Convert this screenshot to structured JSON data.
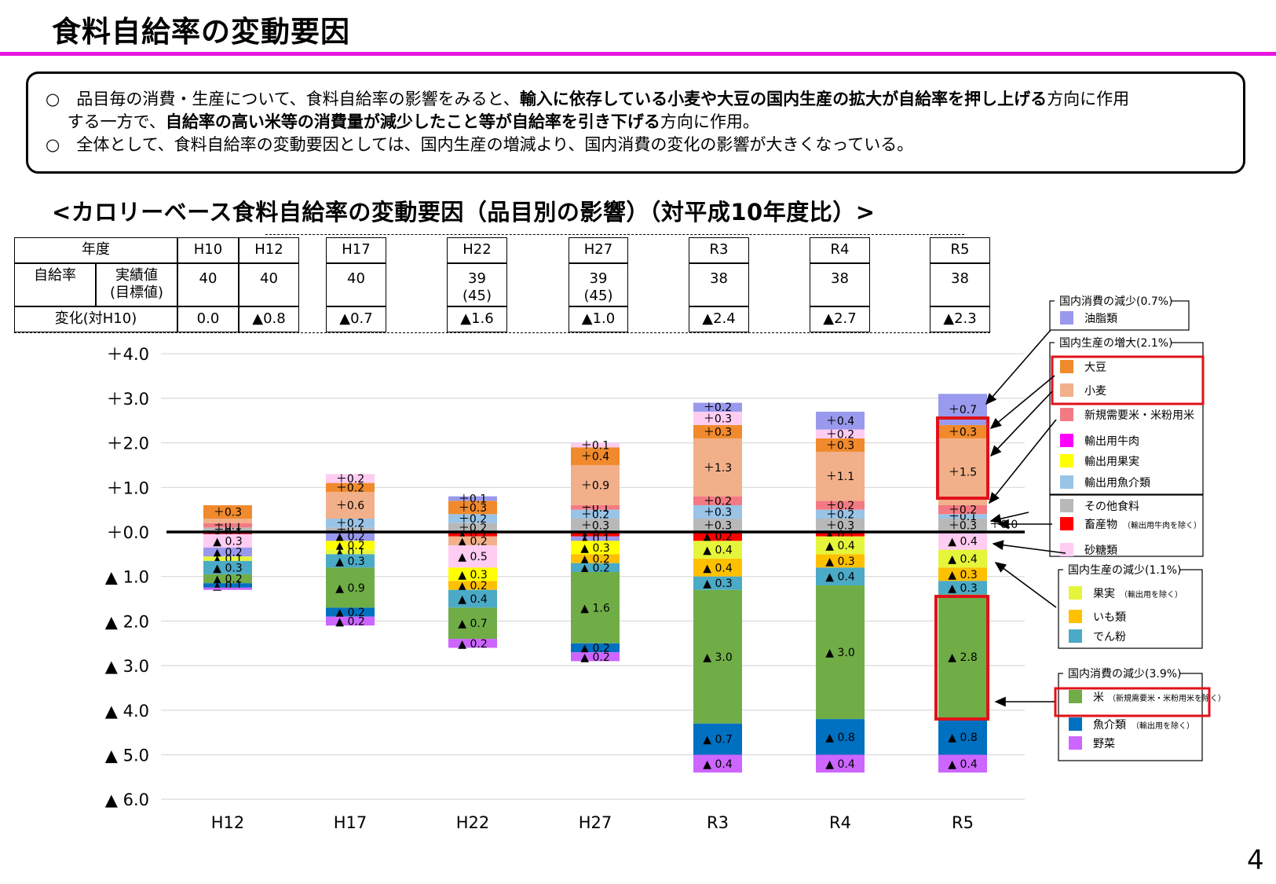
{
  "title": "食料自給率の変動要因",
  "summary": {
    "bullet1": [
      {
        "t": "○　品目毎の消費・生産について、食料自給率の影響をみると、",
        "b": false
      },
      {
        "t": "輸入に依存している小麦や大豆の国内生産の拡大が自給率を押し上げる",
        "b": true
      },
      {
        "t": "方向に作用",
        "b": false
      }
    ],
    "bullet1_cont": [
      {
        "t": "　 する一方で、",
        "b": false
      },
      {
        "t": "自給率の高い米等の消費量が減少したこと等が自給率を引き下げる",
        "b": true
      },
      {
        "t": "方向に作用。",
        "b": false
      }
    ],
    "bullet2": [
      {
        "t": "○　全体として、食料自給率の変動要因としては、国内生産の増減より、国内消費の変化の影響が大きくなっている。",
        "b": false
      }
    ]
  },
  "chart_heading": "<カロリーベース食料自給率の変動要因（品目別の影響）（対平成10年度比）>",
  "table": {
    "year_header": "年度",
    "rate_label": "自給率",
    "actual_label": "実績値",
    "target_label": "(目標値)",
    "change_label": "変化(対H10)",
    "columns": [
      {
        "year": "H10",
        "rate": "40",
        "target": "",
        "change": "0.0"
      },
      {
        "year": "H12",
        "rate": "40",
        "target": "",
        "change": "▲0.8"
      },
      {
        "year": "H17",
        "rate": "40",
        "target": "",
        "change": "▲0.7"
      },
      {
        "year": "H22",
        "rate": "39",
        "target": "(45)",
        "change": "▲1.6"
      },
      {
        "year": "H27",
        "rate": "39",
        "target": "(45)",
        "change": "▲1.0"
      },
      {
        "year": "R3",
        "rate": "38",
        "target": "",
        "change": "▲2.4"
      },
      {
        "year": "R4",
        "rate": "38",
        "target": "",
        "change": "▲2.7"
      },
      {
        "year": "R5",
        "rate": "38",
        "target": "",
        "change": "▲2.3"
      }
    ]
  },
  "colors": {
    "oil": "#9999ee",
    "soy": "#f08a2c",
    "wheat": "#f2b08a",
    "newrice": "#f37a82",
    "exbeef": "#ff00ff",
    "exfruit": "#ffff00",
    "exfish": "#99c4e8",
    "other": "#b8b8b8",
    "livestock": "#ff0000",
    "sugar": "#ffccf2",
    "fruit": "#e5f53a",
    "potato": "#ffc000",
    "starch": "#4baac6",
    "rice": "#70ad47",
    "fish": "#0070c0",
    "veg": "#cc66ff",
    "highlight": "#e0121a",
    "title_rule": "#e815e0"
  },
  "legend": {
    "groups": [
      {
        "title": "国内消費の減少(0.7%)",
        "items": [
          {
            "key": "oil",
            "label": "油脂類",
            "note": ""
          }
        ]
      },
      {
        "title": "国内生産の増大(2.1%)",
        "items": [
          {
            "key": "soy",
            "label": "大豆",
            "note": ""
          },
          {
            "key": "wheat",
            "label": "小麦",
            "note": ""
          },
          {
            "key": "newrice",
            "label": "新規需要米・米粉用米",
            "note": ""
          },
          {
            "key": "exbeef",
            "label": "輸出用牛肉",
            "note": ""
          },
          {
            "key": "exfruit",
            "label": "輸出用果実",
            "note": ""
          },
          {
            "key": "exfish",
            "label": "輸出用魚介類",
            "note": ""
          }
        ]
      },
      {
        "title": "",
        "items": [
          {
            "key": "other",
            "label": "その他食料",
            "note": ""
          },
          {
            "key": "livestock",
            "label": "畜産物",
            "note": "（輸出用牛肉を除く）"
          },
          {
            "key": "sugar",
            "label": "砂糖類",
            "note": ""
          }
        ]
      },
      {
        "title": "国内生産の減少(1.1%)",
        "items": [
          {
            "key": "fruit",
            "label": "果実",
            "note": "（輸出用を除く）"
          },
          {
            "key": "potato",
            "label": "いも類",
            "note": ""
          },
          {
            "key": "starch",
            "label": "でん粉",
            "note": ""
          }
        ]
      },
      {
        "title": "国内消費の減少(3.9%)",
        "items": [
          {
            "key": "rice",
            "label": "米",
            "note": "（新規需要米・米粉用米を除く）"
          },
          {
            "key": "fish",
            "label": "魚介類",
            "note": "（輸出用を除く）"
          },
          {
            "key": "veg",
            "label": "野菜",
            "note": ""
          }
        ]
      }
    ]
  },
  "zero_label": "＋0.0",
  "page_number": "4",
  "chart_data": {
    "type": "bar",
    "stacked": true,
    "categories": [
      "H12",
      "H17",
      "H22",
      "H27",
      "R3",
      "R4",
      "R5"
    ],
    "ylim": [
      -6,
      4
    ],
    "yticks": [
      {
        "v": 4,
        "label": "＋4.0"
      },
      {
        "v": 3,
        "label": "＋3.0"
      },
      {
        "v": 2,
        "label": "＋2.0"
      },
      {
        "v": 1,
        "label": "＋1.0"
      },
      {
        "v": 0,
        "label": "＋0.0"
      },
      {
        "v": -1,
        "label": "▲ 1.0"
      },
      {
        "v": -2,
        "label": "▲ 2.0"
      },
      {
        "v": -3,
        "label": "▲ 3.0"
      },
      {
        "v": -4,
        "label": "▲ 4.0"
      },
      {
        "v": -5,
        "label": "▲ 5.0"
      },
      {
        "v": -6,
        "label": "▲ 6.0"
      }
    ],
    "positive": [
      [
        {
          "k": "other",
          "v": 0.1,
          "l": "＋0.1"
        },
        {
          "k": "newrice",
          "v": 0.1,
          "l": "＋0.1"
        },
        {
          "k": "wheat",
          "v": 0.1,
          "l": ""
        },
        {
          "k": "soy",
          "v": 0.3,
          "l": "＋0.3"
        }
      ],
      [
        {
          "k": "other",
          "v": 0.1,
          "l": "＋0.1"
        },
        {
          "k": "exfish",
          "v": 0.2,
          "l": "＋0.2"
        },
        {
          "k": "wheat",
          "v": 0.6,
          "l": "＋0.6"
        },
        {
          "k": "soy",
          "v": 0.2,
          "l": "＋0.2"
        },
        {
          "k": "sugar",
          "v": 0.2,
          "l": "＋0.2"
        }
      ],
      [
        {
          "k": "other",
          "v": 0.2,
          "l": "＋0.2"
        },
        {
          "k": "exfish",
          "v": 0.2,
          "l": "＋0.2"
        },
        {
          "k": "soy",
          "v": 0.3,
          "l": "＋0.3"
        },
        {
          "k": "oil",
          "v": 0.1,
          "l": "＋0.1"
        }
      ],
      [
        {
          "k": "other",
          "v": 0.3,
          "l": "＋0.3"
        },
        {
          "k": "exfish",
          "v": 0.2,
          "l": "＋0.2"
        },
        {
          "k": "newrice",
          "v": 0.1,
          "l": "＋0.1"
        },
        {
          "k": "wheat",
          "v": 0.9,
          "l": "＋0.9"
        },
        {
          "k": "soy",
          "v": 0.4,
          "l": "＋0.4"
        },
        {
          "k": "sugar",
          "v": 0.1,
          "l": "＋0.1"
        }
      ],
      [
        {
          "k": "other",
          "v": 0.3,
          "l": "＋0.3"
        },
        {
          "k": "exfish",
          "v": 0.3,
          "l": "＋0.3"
        },
        {
          "k": "newrice",
          "v": 0.2,
          "l": "＋0.2"
        },
        {
          "k": "wheat",
          "v": 1.3,
          "l": "＋1.3"
        },
        {
          "k": "soy",
          "v": 0.3,
          "l": "＋0.3"
        },
        {
          "k": "sugar",
          "v": 0.3,
          "l": "＋0.3"
        },
        {
          "k": "oil",
          "v": 0.2,
          "l": "＋0.2"
        }
      ],
      [
        {
          "k": "other",
          "v": 0.3,
          "l": "＋0.3"
        },
        {
          "k": "exfish",
          "v": 0.2,
          "l": "＋0.2"
        },
        {
          "k": "newrice",
          "v": 0.2,
          "l": "＋0.2"
        },
        {
          "k": "wheat",
          "v": 1.1,
          "l": "＋1.1"
        },
        {
          "k": "soy",
          "v": 0.3,
          "l": "＋0.3"
        },
        {
          "k": "sugar",
          "v": 0.2,
          "l": "＋0.2"
        },
        {
          "k": "oil",
          "v": 0.4,
          "l": "＋0.4"
        }
      ],
      [
        {
          "k": "other",
          "v": 0.3,
          "l": "＋0.3"
        },
        {
          "k": "exfish",
          "v": 0.1,
          "l": "＋0.1"
        },
        {
          "k": "newrice",
          "v": 0.2,
          "l": "＋0.2"
        },
        {
          "k": "wheat",
          "v": 1.5,
          "l": "＋1.5"
        },
        {
          "k": "soy",
          "v": 0.3,
          "l": "＋0.3"
        },
        {
          "k": "oil",
          "v": 0.7,
          "l": "＋0.7"
        }
      ]
    ],
    "negative": [
      [
        {
          "k": "livestock",
          "v": 0.05,
          "l": "▲ 0.1"
        },
        {
          "k": "sugar",
          "v": 0.3,
          "l": "▲ 0.3"
        },
        {
          "k": "oil",
          "v": 0.2,
          "l": "▲ 0.2"
        },
        {
          "k": "fruit",
          "v": 0.1,
          "l": "▲ 0.1"
        },
        {
          "k": "starch",
          "v": 0.3,
          "l": "▲ 0.3"
        },
        {
          "k": "rice",
          "v": 0.2,
          "l": "▲ 0.2"
        },
        {
          "k": "fish",
          "v": 0.1,
          "l": "▲ 0.1"
        },
        {
          "k": "veg",
          "v": 0.05,
          "l": ""
        }
      ],
      [
        {
          "k": "oil",
          "v": 0.2,
          "l": "▲ 0.2"
        },
        {
          "k": "exfruit",
          "v": 0.2,
          "l": "▲ 0.2"
        },
        {
          "k": "fruit",
          "v": 0.1,
          "l": "▲ 0.1"
        },
        {
          "k": "starch",
          "v": 0.3,
          "l": "▲ 0.3"
        },
        {
          "k": "rice",
          "v": 0.9,
          "l": "▲ 0.9"
        },
        {
          "k": "fish",
          "v": 0.2,
          "l": "▲ 0.2"
        },
        {
          "k": "veg",
          "v": 0.2,
          "l": "▲ 0.2"
        }
      ],
      [
        {
          "k": "livestock",
          "v": 0.1,
          "l": "▲ 0.1"
        },
        {
          "k": "wheat",
          "v": 0.2,
          "l": "▲ 0.2"
        },
        {
          "k": "sugar",
          "v": 0.5,
          "l": "▲ 0.5"
        },
        {
          "k": "exfruit",
          "v": 0.3,
          "l": "▲ 0.3"
        },
        {
          "k": "potato",
          "v": 0.2,
          "l": "▲ 0.2"
        },
        {
          "k": "starch",
          "v": 0.4,
          "l": "▲ 0.4"
        },
        {
          "k": "rice",
          "v": 0.7,
          "l": "▲ 0.7"
        },
        {
          "k": "veg",
          "v": 0.2,
          "l": "▲ 0.2"
        }
      ],
      [
        {
          "k": "livestock",
          "v": 0.1,
          "l": "▲ 0.1"
        },
        {
          "k": "oil",
          "v": 0.1,
          "l": "▲ 0.1"
        },
        {
          "k": "exfruit",
          "v": 0.3,
          "l": "▲ 0.3"
        },
        {
          "k": "potato",
          "v": 0.2,
          "l": "▲ 0.2"
        },
        {
          "k": "starch",
          "v": 0.2,
          "l": "▲ 0.2"
        },
        {
          "k": "rice",
          "v": 1.6,
          "l": "▲ 1.6"
        },
        {
          "k": "fish",
          "v": 0.2,
          "l": "▲ 0.2"
        },
        {
          "k": "veg",
          "v": 0.2,
          "l": "▲ 0.2"
        }
      ],
      [
        {
          "k": "livestock",
          "v": 0.2,
          "l": "▲ 0.2"
        },
        {
          "k": "fruit",
          "v": 0.4,
          "l": "▲ 0.4"
        },
        {
          "k": "potato",
          "v": 0.4,
          "l": "▲ 0.4"
        },
        {
          "k": "starch",
          "v": 0.3,
          "l": "▲ 0.3"
        },
        {
          "k": "rice",
          "v": 3.0,
          "l": "▲ 3.0"
        },
        {
          "k": "fish",
          "v": 0.7,
          "l": "▲ 0.7"
        },
        {
          "k": "veg",
          "v": 0.4,
          "l": "▲ 0.4"
        }
      ],
      [
        {
          "k": "livestock",
          "v": 0.1,
          "l": "▲ 0.1"
        },
        {
          "k": "fruit",
          "v": 0.4,
          "l": "▲ 0.4"
        },
        {
          "k": "potato",
          "v": 0.3,
          "l": "▲ 0.3"
        },
        {
          "k": "starch",
          "v": 0.4,
          "l": "▲ 0.4"
        },
        {
          "k": "rice",
          "v": 3.0,
          "l": "▲ 3.0"
        },
        {
          "k": "fish",
          "v": 0.8,
          "l": "▲ 0.8"
        },
        {
          "k": "veg",
          "v": 0.4,
          "l": "▲ 0.4"
        }
      ],
      [
        {
          "k": "sugar",
          "v": 0.4,
          "l": "▲ 0.4"
        },
        {
          "k": "fruit",
          "v": 0.4,
          "l": "▲ 0.4"
        },
        {
          "k": "potato",
          "v": 0.3,
          "l": "▲ 0.3"
        },
        {
          "k": "starch",
          "v": 0.3,
          "l": "▲ 0.3"
        },
        {
          "k": "rice",
          "v": 2.8,
          "l": "▲ 2.8"
        },
        {
          "k": "fish",
          "v": 0.8,
          "l": "▲ 0.8"
        },
        {
          "k": "veg",
          "v": 0.4,
          "l": "▲ 0.4"
        }
      ]
    ]
  }
}
